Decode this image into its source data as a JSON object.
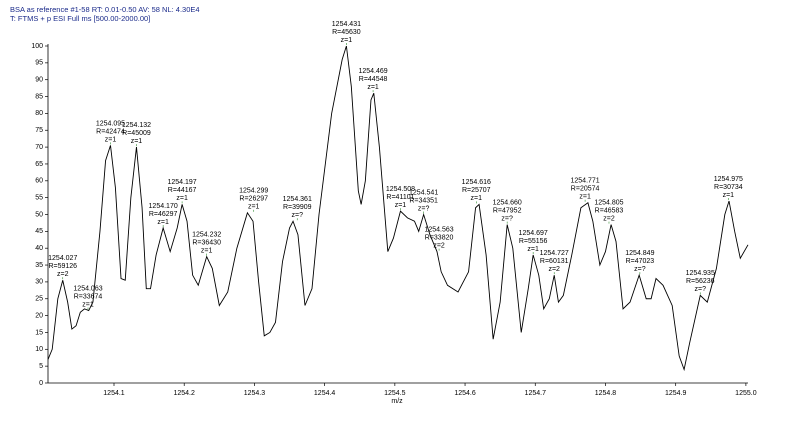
{
  "header": {
    "line1": "BSA as reference #1-58  RT: 0.01-0.50  AV: 58  NL: 4.30E4",
    "line2": "T: FTMS + p ESI Full ms [500.00-2000.00]"
  },
  "chart_data": {
    "type": "line",
    "xlabel": "m/z",
    "color": "#000000",
    "xlim": [
      1254.006,
      1255.003
    ],
    "ylim": [
      0,
      100
    ],
    "xticks": [
      1254.1,
      1254.2,
      1254.3,
      1254.4,
      1254.5,
      1254.6,
      1254.7,
      1254.8,
      1254.9,
      {
        "value": 1255,
        "label": "1255.0"
      }
    ],
    "yticks": [
      0,
      5,
      10,
      15,
      20,
      25,
      30,
      35,
      40,
      45,
      50,
      55,
      60,
      65,
      70,
      75,
      80,
      85,
      90,
      95,
      100
    ],
    "x": [
      1254.006,
      1254.012,
      1254.02,
      1254.027,
      1254.034,
      1254.04,
      1254.046,
      1254.052,
      1254.058,
      1254.064,
      1254.07,
      1254.08,
      1254.088,
      1254.095,
      1254.102,
      1254.11,
      1254.116,
      1254.124,
      1254.132,
      1254.14,
      1254.146,
      1254.152,
      1254.16,
      1254.17,
      1254.18,
      1254.19,
      1254.197,
      1254.204,
      1254.212,
      1254.22,
      1254.232,
      1254.24,
      1254.25,
      1254.262,
      1254.275,
      1254.29,
      1254.298,
      1254.306,
      1254.314,
      1254.322,
      1254.33,
      1254.34,
      1254.35,
      1254.355,
      1254.362,
      1254.372,
      1254.382,
      1254.392,
      1254.41,
      1254.425,
      1254.431,
      1254.438,
      1254.448,
      1254.452,
      1254.458,
      1254.466,
      1254.47,
      1254.478,
      1254.49,
      1254.498,
      1254.508,
      1254.518,
      1254.528,
      1254.534,
      1254.541,
      1254.55,
      1254.56,
      1254.566,
      1254.575,
      1254.59,
      1254.605,
      1254.615,
      1254.62,
      1254.63,
      1254.64,
      1254.65,
      1254.66,
      1254.668,
      1254.68,
      1254.69,
      1254.697,
      1254.705,
      1254.712,
      1254.72,
      1254.727,
      1254.733,
      1254.74,
      1254.752,
      1254.765,
      1254.775,
      1254.782,
      1254.792,
      1254.8,
      1254.808,
      1254.815,
      1254.825,
      1254.835,
      1254.848,
      1254.858,
      1254.865,
      1254.872,
      1254.882,
      1254.895,
      1254.905,
      1254.912,
      1254.92,
      1254.935,
      1254.945,
      1254.958,
      1254.97,
      1254.976,
      1254.984,
      1254.992,
      1255.003
    ],
    "values": [
      7,
      10,
      25,
      30.5,
      24,
      16,
      17,
      21,
      22,
      21.5,
      24,
      45,
      66,
      70.5,
      58,
      31,
      30.5,
      55,
      70,
      52,
      28,
      28,
      38,
      46,
      39,
      46,
      53,
      48,
      32,
      29,
      37.5,
      34,
      23,
      27,
      40,
      50.5,
      48,
      30,
      14,
      15,
      18,
      36,
      46,
      48,
      44,
      23,
      28,
      50,
      80,
      96,
      100,
      88,
      57,
      53,
      60,
      84,
      86,
      70,
      39,
      43,
      51,
      49,
      48,
      45,
      50,
      44,
      39,
      33,
      29,
      27,
      33,
      52,
      53,
      38,
      13,
      24,
      47,
      40,
      15,
      28,
      38,
      32,
      22,
      25,
      32,
      24,
      26,
      38,
      52,
      53.5,
      48,
      35,
      39,
      47,
      42,
      22,
      24,
      32,
      25,
      25,
      31,
      29,
      23,
      8,
      4,
      12,
      26,
      24,
      34,
      50,
      54,
      45,
      37,
      41
    ],
    "annotations": [
      {
        "x": 1254.027,
        "y": 30.5,
        "text": [
          "1254.027",
          "R=59126",
          "z=2"
        ]
      },
      {
        "x": 1254.063,
        "y": 21.5,
        "text": [
          "1254.063",
          "R=33674",
          "z=1"
        ]
      },
      {
        "x": 1254.095,
        "y": 70.5,
        "text": [
          "1254.095",
          "R=42474",
          "z=1"
        ]
      },
      {
        "x": 1254.132,
        "y": 70,
        "text": [
          "1254.132",
          "R=45009",
          "z=1"
        ]
      },
      {
        "x": 1254.17,
        "y": 46,
        "text": [
          "1254.170",
          "R=46297",
          "z=1"
        ]
      },
      {
        "x": 1254.197,
        "y": 53,
        "text": [
          "1254.197",
          "R=44167",
          "z=1"
        ]
      },
      {
        "x": 1254.232,
        "y": 37.5,
        "text": [
          "1254.232",
          "R=36430",
          "z=1"
        ]
      },
      {
        "x": 1254.299,
        "y": 50.5,
        "text": [
          "1254.299",
          "R=26297",
          "z=1"
        ]
      },
      {
        "x": 1254.361,
        "y": 48,
        "text": [
          "1254.361",
          "R=39909",
          "z=?"
        ]
      },
      {
        "x": 1254.431,
        "y": 100,
        "text": [
          "1254.431",
          "R=45630",
          "z=1"
        ]
      },
      {
        "x": 1254.469,
        "y": 86,
        "text": [
          "1254.469",
          "R=44548",
          "z=1"
        ]
      },
      {
        "x": 1254.508,
        "y": 51,
        "text": [
          "1254.508",
          "R=41101",
          "z=1"
        ]
      },
      {
        "x": 1254.541,
        "y": 50,
        "text": [
          "1254.541",
          "R=34351",
          "z=?"
        ]
      },
      {
        "x": 1254.563,
        "y": 39,
        "text": [
          "1254.563",
          "R=33820",
          "z=2"
        ]
      },
      {
        "x": 1254.616,
        "y": 53,
        "text": [
          "1254.616",
          "R=25707",
          "z=1"
        ]
      },
      {
        "x": 1254.66,
        "y": 47,
        "text": [
          "1254.660",
          "R=47952",
          "z=?"
        ]
      },
      {
        "x": 1254.697,
        "y": 38,
        "text": [
          "1254.697",
          "R=55156",
          "z=1"
        ]
      },
      {
        "x": 1254.727,
        "y": 32,
        "text": [
          "1254.727",
          "R=60131",
          "z=2"
        ]
      },
      {
        "x": 1254.771,
        "y": 53.5,
        "text": [
          "1254.771",
          "R=20574",
          "z=1"
        ]
      },
      {
        "x": 1254.805,
        "y": 47,
        "text": [
          "1254.805",
          "R=46583",
          "z=2"
        ]
      },
      {
        "x": 1254.849,
        "y": 32,
        "text": [
          "1254.849",
          "R=47023",
          "z=?"
        ]
      },
      {
        "x": 1254.935,
        "y": 26,
        "text": [
          "1254.935",
          "R=56236",
          "z=?"
        ]
      },
      {
        "x": 1254.975,
        "y": 54,
        "text": [
          "1254.975",
          "R=30734",
          "z=1"
        ]
      }
    ]
  }
}
